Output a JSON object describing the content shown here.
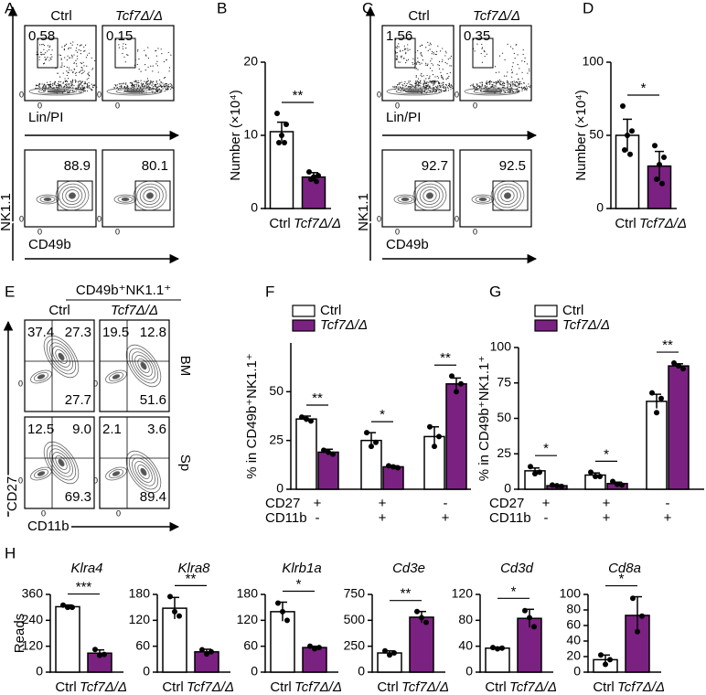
{
  "flow_panels": {
    "A": {
      "label": "A",
      "headers": [
        "Ctrl",
        "Tcf7Δ/Δ"
      ],
      "top_x_axis": "Lin/PI",
      "bottom_x_axis": "CD49b",
      "y_axis": "NK1.1",
      "zero": "0",
      "top_gates": [
        "0.58",
        "0.15"
      ],
      "bottom_gates": [
        "88.9",
        "80.1"
      ],
      "colors": [
        "#000000",
        "#7b2182"
      ]
    },
    "C": {
      "label": "C",
      "headers": [
        "Ctrl",
        "Tcf7Δ/Δ"
      ],
      "top_x_axis": "Lin/PI",
      "bottom_x_axis": "CD49b",
      "y_axis": "NK1.1",
      "zero": "0",
      "top_gates": [
        "1.56",
        "0.35"
      ],
      "bottom_gates": [
        "92.7",
        "92.5"
      ],
      "colors": [
        "#000000",
        "#7b2182"
      ]
    },
    "E": {
      "label": "E",
      "title": "CD49b⁺NK1.1⁺",
      "headers": [
        "Ctrl",
        "Tcf7Δ/Δ"
      ],
      "rows": [
        "BM",
        "Sp"
      ],
      "y_axis": "CD27",
      "x_axis": "CD11b",
      "zero": "0",
      "quadrants": [
        [
          [
            "37.4",
            "27.3",
            "27.7"
          ],
          [
            "19.5",
            "12.8",
            "51.6"
          ]
        ],
        [
          [
            "12.5",
            "9.0",
            "69.3"
          ],
          [
            "2.1",
            "3.6",
            "89.4"
          ]
        ]
      ],
      "colors": [
        "#000000",
        "#7b2182"
      ]
    }
  },
  "chart_data": [
    {
      "type": "bar",
      "panel": "B",
      "y_label": "Number (×10⁴)",
      "categories": [
        "Ctrl",
        "Tcf7Δ/Δ"
      ],
      "values": [
        10.5,
        4.3
      ],
      "errors": [
        1.3,
        0.6
      ],
      "points": [
        [
          13.0,
          11.5,
          10.0,
          9.0,
          9.0
        ],
        [
          5.0,
          4.5,
          4.3,
          4.0,
          3.7
        ]
      ],
      "colors": [
        "#ffffff",
        "#7b2182"
      ],
      "ylim": [
        0,
        20
      ],
      "yticks": [
        0,
        10,
        20
      ],
      "significance": [
        "**"
      ]
    },
    {
      "type": "bar",
      "panel": "D",
      "y_label": "Number (×10⁴)",
      "categories": [
        "Ctrl",
        "Tcf7Δ/Δ"
      ],
      "values": [
        50,
        29
      ],
      "errors": [
        11,
        10
      ],
      "points": [
        [
          70,
          53,
          50,
          40,
          37
        ],
        [
          43,
          35,
          30,
          20,
          17
        ]
      ],
      "colors": [
        "#ffffff",
        "#7b2182"
      ],
      "ylim": [
        0,
        100
      ],
      "yticks": [
        0,
        50,
        100
      ],
      "significance": [
        "*"
      ]
    },
    {
      "type": "bar",
      "panel": "F",
      "y_label": "% in CD49b⁺NK1.1⁺",
      "series": [
        {
          "name": "Ctrl",
          "color": "#ffffff",
          "values": [
            36,
            25,
            27
          ],
          "errors": [
            1.5,
            4,
            5
          ],
          "points": [
            [
              37,
              35,
              36
            ],
            [
              29,
              24,
              22
            ],
            [
              32,
              27,
              22
            ]
          ]
        },
        {
          "name": "Tcf7Δ/Δ",
          "color": "#7b2182",
          "values": [
            19,
            11.5,
            54
          ],
          "errors": [
            1.5,
            0.5,
            3
          ],
          "points": [
            [
              20,
              18,
              19
            ],
            [
              12,
              11,
              11.5
            ],
            [
              58,
              54,
              50
            ]
          ]
        }
      ],
      "ylim": [
        0,
        75
      ],
      "yticks": [
        0,
        25,
        50
      ],
      "row_labels": [
        "CD27",
        "CD11b"
      ],
      "row_marks": [
        [
          "+",
          "+",
          "-"
        ],
        [
          "-",
          "+",
          "+"
        ]
      ],
      "significance": [
        "**",
        "*",
        "**"
      ]
    },
    {
      "type": "bar",
      "panel": "G",
      "y_label": "% in CD49b⁺NK1.1⁺",
      "series": [
        {
          "name": "Ctrl",
          "color": "#ffffff",
          "values": [
            13,
            10,
            62
          ],
          "errors": [
            2,
            1.5,
            5
          ],
          "points": [
            [
              16,
              12,
              11
            ],
            [
              12,
              9,
              9
            ],
            [
              68,
              64,
              54
            ]
          ]
        },
        {
          "name": "Tcf7Δ/Δ",
          "color": "#7b2182",
          "values": [
            2.5,
            4,
            87
          ],
          "errors": [
            0.5,
            1,
            1.5
          ],
          "points": [
            [
              3,
              2,
              2.5
            ],
            [
              5.5,
              3,
              3.5
            ],
            [
              89,
              85,
              87
            ]
          ]
        }
      ],
      "ylim": [
        0,
        100
      ],
      "yticks": [
        0,
        25,
        50,
        75,
        100
      ],
      "row_labels": [
        "CD27",
        "CD11b"
      ],
      "row_marks": [
        [
          "+",
          "+",
          "-"
        ],
        [
          "-",
          "+",
          "+"
        ]
      ],
      "significance": [
        "*",
        "*",
        "**"
      ]
    },
    {
      "type": "bar",
      "panel": "H",
      "title": "Klra4",
      "y_label": "Reads",
      "categories": [
        "Ctrl",
        "Tcf7Δ/Δ"
      ],
      "values": [
        303,
        88
      ],
      "errors": [
        8,
        15
      ],
      "points": [
        [
          310,
          300,
          300
        ],
        [
          105,
          82,
          78
        ]
      ],
      "colors": [
        "#ffffff",
        "#7b2182"
      ],
      "ylim": [
        0,
        360
      ],
      "yticks": [
        0,
        120,
        240,
        360
      ],
      "significance": [
        "***"
      ]
    },
    {
      "type": "bar",
      "title": "Klra8",
      "categories": [
        "Ctrl",
        "Tcf7Δ/Δ"
      ],
      "values": [
        148,
        47
      ],
      "errors": [
        25,
        6
      ],
      "points": [
        [
          175,
          130,
          140
        ],
        [
          52,
          47,
          42
        ]
      ],
      "colors": [
        "#ffffff",
        "#7b2182"
      ],
      "ylim": [
        0,
        180
      ],
      "yticks": [
        0,
        60,
        120,
        180
      ],
      "significance": [
        "**"
      ]
    },
    {
      "type": "bar",
      "title": "Klrb1a",
      "categories": [
        "Ctrl",
        "Tcf7Δ/Δ"
      ],
      "values": [
        140,
        57
      ],
      "errors": [
        22,
        3
      ],
      "points": [
        [
          160,
          120,
          140
        ],
        [
          60,
          57,
          54
        ]
      ],
      "colors": [
        "#ffffff",
        "#7b2182"
      ],
      "ylim": [
        0,
        180
      ],
      "yticks": [
        0,
        60,
        120,
        180
      ],
      "significance": [
        "*"
      ]
    },
    {
      "type": "bar",
      "title": "Cd3e",
      "categories": [
        "Ctrl",
        "Tcf7Δ/Δ"
      ],
      "values": [
        185,
        530
      ],
      "errors": [
        20,
        55
      ],
      "points": [
        [
          205,
          185,
          165
        ],
        [
          585,
          480,
          525
        ]
      ],
      "colors": [
        "#ffffff",
        "#7b2182"
      ],
      "ylim": [
        0,
        750
      ],
      "yticks": [
        0,
        250,
        500,
        750
      ],
      "significance": [
        "**"
      ]
    },
    {
      "type": "bar",
      "title": "Cd3d",
      "categories": [
        "Ctrl",
        "Tcf7Δ/Δ"
      ],
      "values": [
        37,
        83
      ],
      "errors": [
        1.5,
        14
      ],
      "points": [
        [
          38,
          37,
          36
        ],
        [
          95,
          70,
          84
        ]
      ],
      "colors": [
        "#ffffff",
        "#7b2182"
      ],
      "ylim": [
        0,
        120
      ],
      "yticks": [
        0,
        40,
        80,
        120
      ],
      "significance": [
        "*"
      ]
    },
    {
      "type": "bar",
      "title": "Cd8a",
      "categories": [
        "Ctrl",
        "Tcf7Δ/Δ"
      ],
      "values": [
        16,
        73
      ],
      "errors": [
        6,
        24
      ],
      "points": [
        [
          22,
          16,
          10
        ],
        [
          95,
          72,
          52
        ]
      ],
      "colors": [
        "#ffffff",
        "#7b2182"
      ],
      "ylim": [
        0,
        100
      ],
      "yticks": [
        0,
        20,
        40,
        60,
        80,
        100
      ],
      "significance": [
        "*"
      ]
    }
  ]
}
